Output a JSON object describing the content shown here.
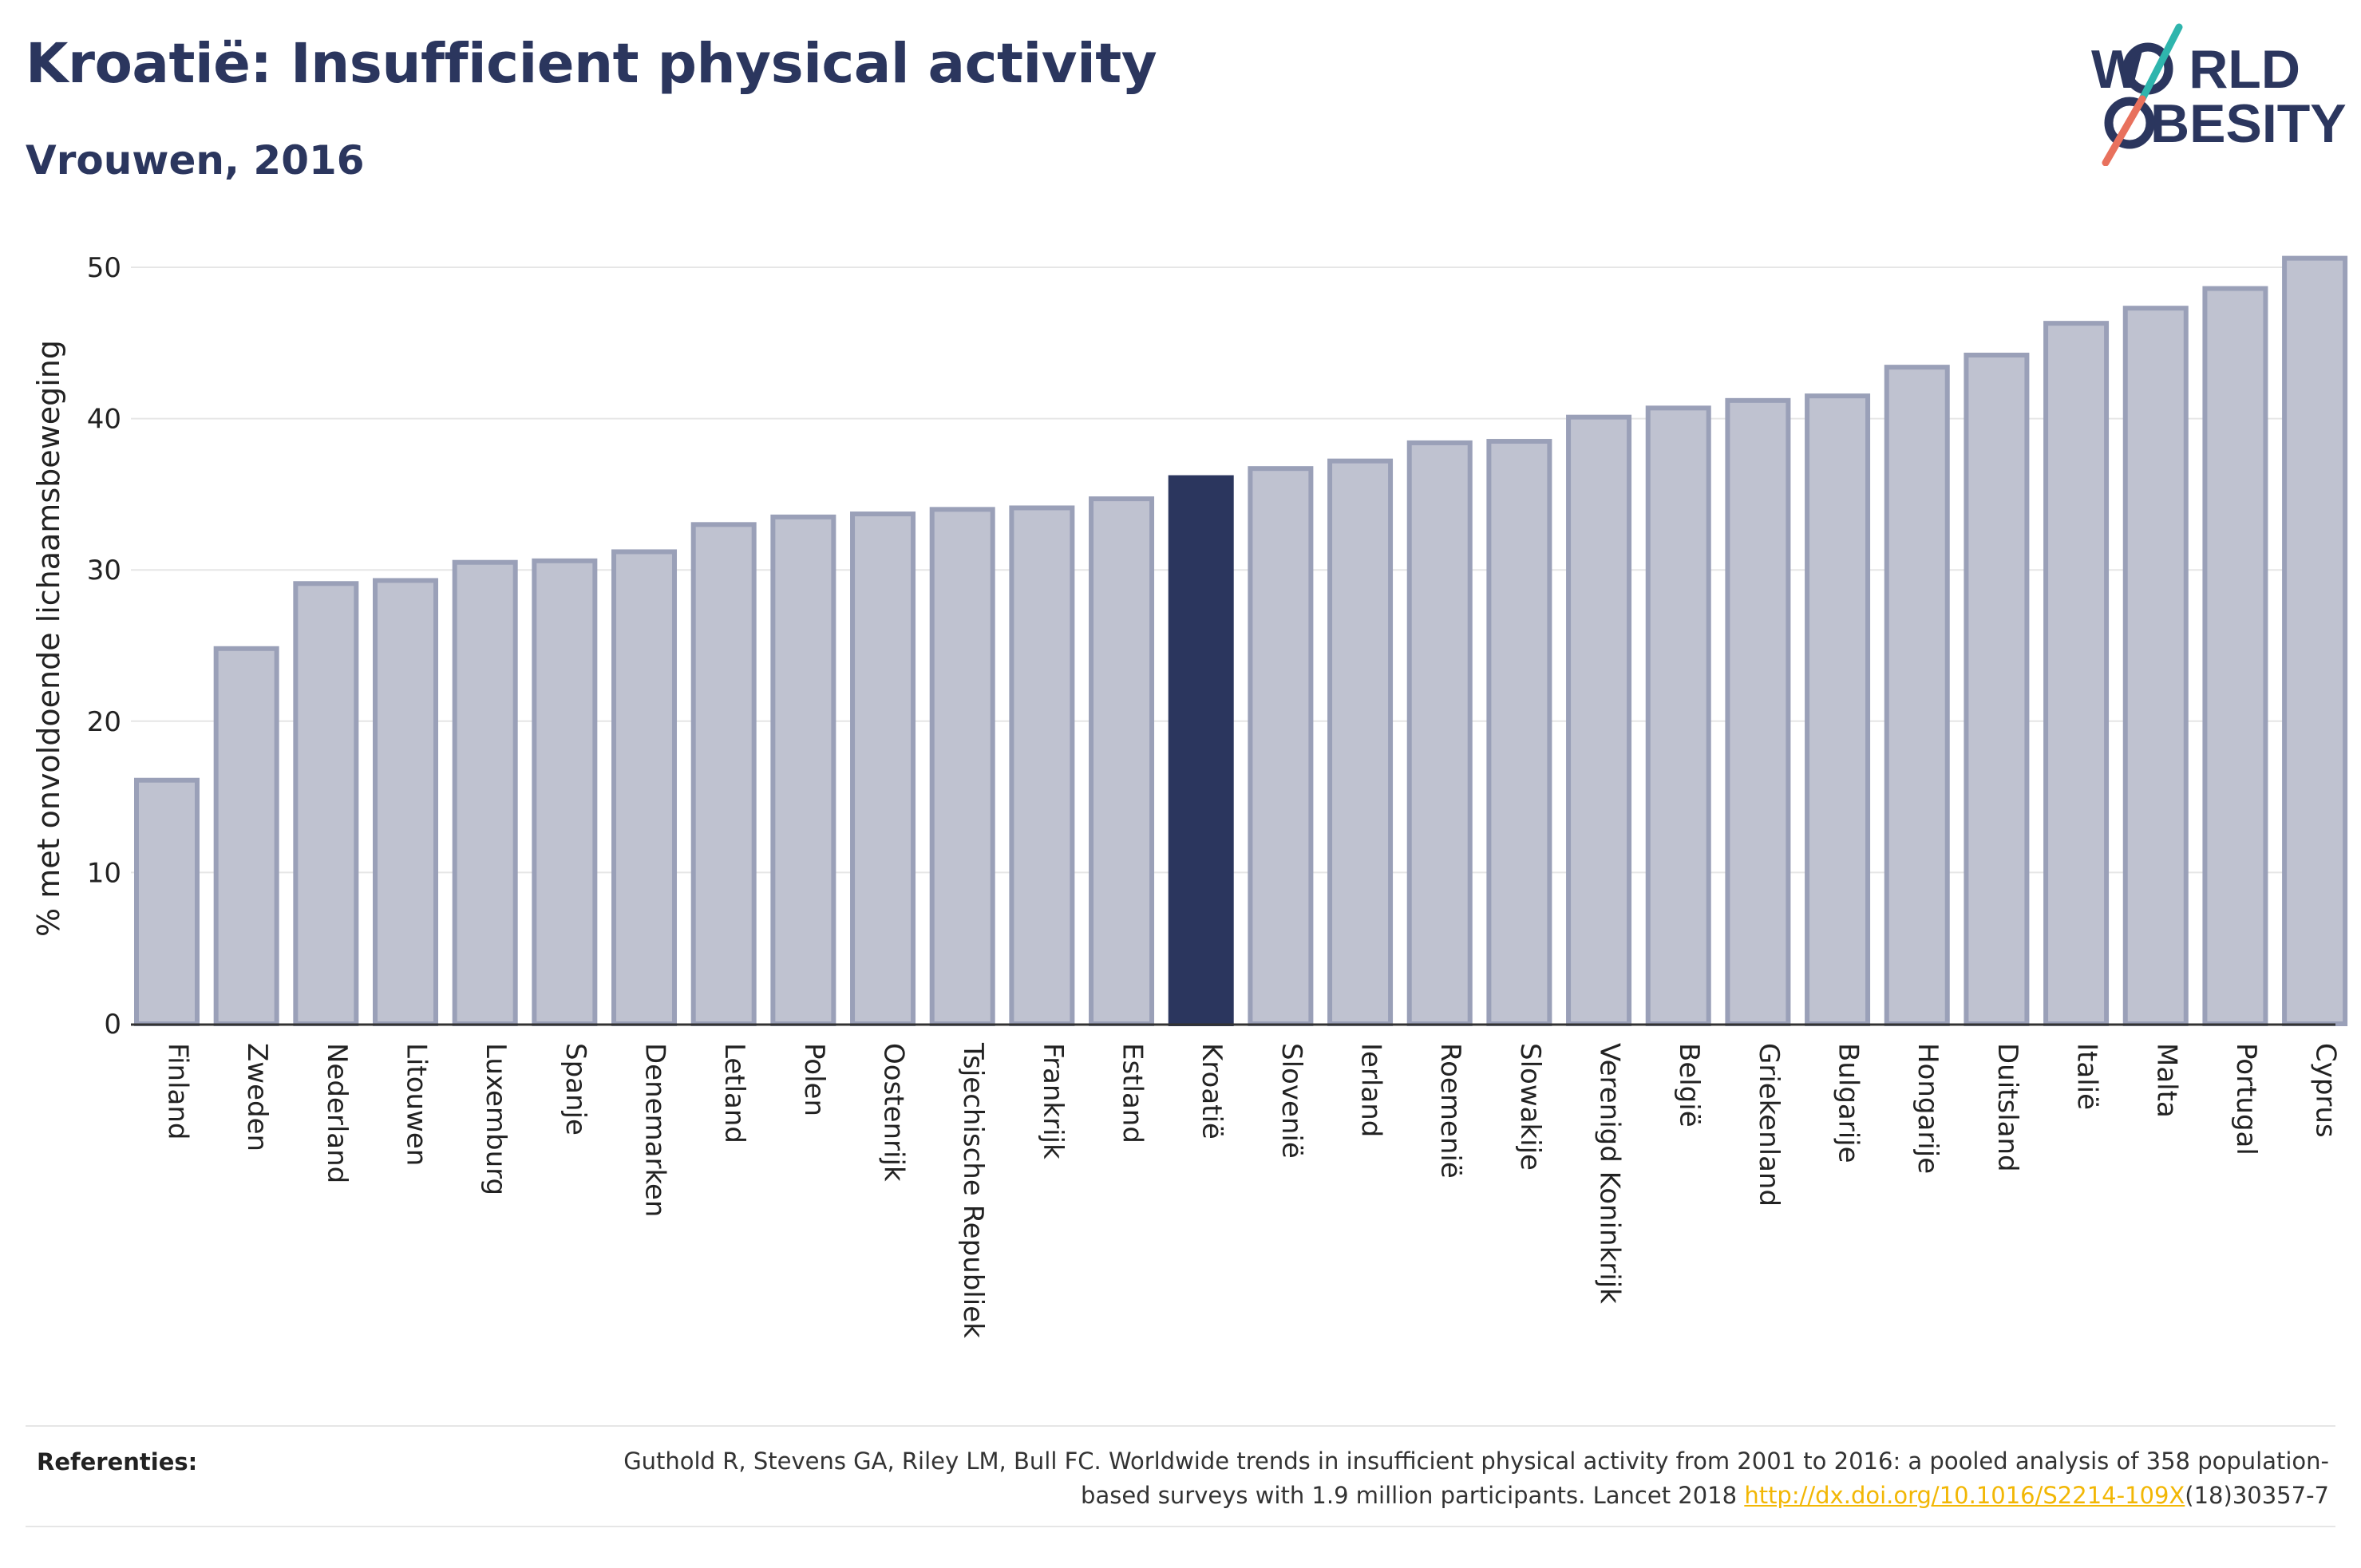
{
  "header": {
    "title": "Kroatië: Insufficient physical activity",
    "subtitle": "Vrouwen, 2016"
  },
  "logo": {
    "line1": "W",
    "line1_rest": "RLD",
    "line2": "O",
    "line2_rest": "BESITY",
    "text_color": "#2b365e",
    "slash_color_top": "#2fb5ad",
    "slash_color_bottom": "#e8715d"
  },
  "chart_data": {
    "type": "bar",
    "title": "Kroatië: Insufficient physical activity",
    "subtitle": "Vrouwen, 2016",
    "ylabel": "% met onvoldoende lichaamsbeweging",
    "xlabel": "",
    "ylim": [
      0,
      52
    ],
    "yticks": [
      0,
      10,
      20,
      30,
      40,
      50
    ],
    "grid": true,
    "highlight": "Kroatië",
    "colors": {
      "bar": "#bfc2d0",
      "bar_border": "#9aa0b8",
      "highlight": "#2b365e",
      "grid": "#e6e6e6",
      "axis": "#333333"
    },
    "categories": [
      "Finland",
      "Zweden",
      "Nederland",
      "Litouwen",
      "Luxemburg",
      "Spanje",
      "Denemarken",
      "Letland",
      "Polen",
      "Oostenrijk",
      "Tsjechische Republiek",
      "Frankrijk",
      "Estland",
      "Kroatië",
      "Slovenië",
      "Ierland",
      "Roemenië",
      "Slowakije",
      "Verenigd Koninkrijk",
      "België",
      "Griekenland",
      "Bulgarije",
      "Hongarije",
      "Duitsland",
      "Italië",
      "Malta",
      "Portugal",
      "Cyprus"
    ],
    "values": [
      16.1,
      24.8,
      29.1,
      29.3,
      30.5,
      30.6,
      31.2,
      33.0,
      33.5,
      33.7,
      34.0,
      34.1,
      34.7,
      36.1,
      36.7,
      37.2,
      38.4,
      38.5,
      40.1,
      40.7,
      41.2,
      41.5,
      43.4,
      44.2,
      46.3,
      47.3,
      48.6,
      50.6
    ]
  },
  "references": {
    "label": "Referenties:",
    "text_before": "Guthold R, Stevens GA, Riley LM, Bull FC. Worldwide trends in insufficient physical activity from 2001 to 2016: a pooled analysis of 358 population-based surveys with 1.9 million participants. Lancet 2018 ",
    "link": "http://dx.doi.org/10.1016/S2214-109X",
    "text_after": "(18)30357-7"
  }
}
